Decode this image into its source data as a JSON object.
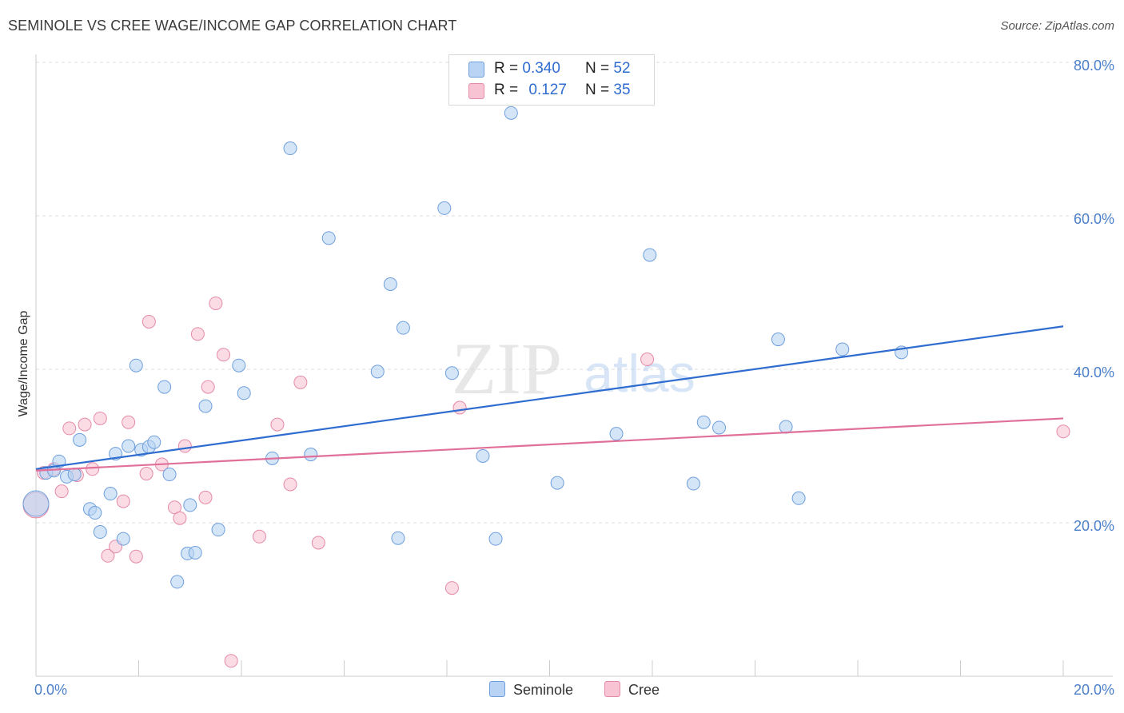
{
  "title": "SEMINOLE VS CREE WAGE/INCOME GAP CORRELATION CHART",
  "source": "Source: ZipAtlas.com",
  "watermark": {
    "zip": "ZIP",
    "atlas": "atlas"
  },
  "legend": {
    "rows": [
      {
        "r_label": "R =",
        "r_value": "0.340",
        "n_label": "N =",
        "n_value": "52"
      },
      {
        "r_label": "R =",
        "r_value": "0.127",
        "n_label": "N =",
        "n_value": "35"
      }
    ]
  },
  "bottom_legend": {
    "seminole": "Seminole",
    "cree": "Cree"
  },
  "colors": {
    "seminole_fill": "#b8d3f3",
    "seminole_stroke": "#6e9fdc",
    "seminole_line": "#2f6ccf",
    "cree_fill": "#f8c4d4",
    "cree_stroke": "#e58aa8",
    "cree_line": "#e0709a",
    "tick_text": "#4a7fc9",
    "grid": "#dddddd"
  },
  "chart_data": {
    "type": "scatter",
    "title": "SEMINOLE VS CREE WAGE/INCOME GAP CORRELATION CHART",
    "xlabel": "",
    "ylabel": "Wage/Income Gap",
    "xlim": [
      0,
      20
    ],
    "ylim": [
      0,
      82
    ],
    "x_tick_labels": [
      "0.0%",
      "20.0%"
    ],
    "y_ticks": [
      20,
      40,
      60,
      80
    ],
    "y_tick_labels": [
      "20.0%",
      "40.0%",
      "60.0%",
      "80.0%"
    ],
    "grid": true,
    "legend_position": "top-center",
    "series": [
      {
        "name": "Seminole",
        "r": 0.34,
        "n": 52,
        "trend": {
          "x": [
            0,
            20
          ],
          "y": [
            27.0,
            45.6
          ]
        },
        "points": [
          [
            0.0,
            22.5
          ],
          [
            0.2,
            26.5
          ],
          [
            0.35,
            26.8
          ],
          [
            0.45,
            28.0
          ],
          [
            0.6,
            26.0
          ],
          [
            0.75,
            26.3
          ],
          [
            0.85,
            30.8
          ],
          [
            1.05,
            21.8
          ],
          [
            1.15,
            21.3
          ],
          [
            1.25,
            18.8
          ],
          [
            1.45,
            23.8
          ],
          [
            1.55,
            29.0
          ],
          [
            1.7,
            17.9
          ],
          [
            1.8,
            30.0
          ],
          [
            1.95,
            40.5
          ],
          [
            2.05,
            29.5
          ],
          [
            2.2,
            29.9
          ],
          [
            2.3,
            30.5
          ],
          [
            2.5,
            37.7
          ],
          [
            2.6,
            26.3
          ],
          [
            2.75,
            12.3
          ],
          [
            2.95,
            16.0
          ],
          [
            3.0,
            22.3
          ],
          [
            3.1,
            16.1
          ],
          [
            3.3,
            35.2
          ],
          [
            3.55,
            19.1
          ],
          [
            3.95,
            40.5
          ],
          [
            4.05,
            36.9
          ],
          [
            4.6,
            28.4
          ],
          [
            4.95,
            68.8
          ],
          [
            5.35,
            28.9
          ],
          [
            5.7,
            57.1
          ],
          [
            6.65,
            39.7
          ],
          [
            6.9,
            51.1
          ],
          [
            7.05,
            18.0
          ],
          [
            7.15,
            45.4
          ],
          [
            7.95,
            61.0
          ],
          [
            8.1,
            39.5
          ],
          [
            8.7,
            28.7
          ],
          [
            8.95,
            17.9
          ],
          [
            9.25,
            73.4
          ],
          [
            10.15,
            25.2
          ],
          [
            11.3,
            31.6
          ],
          [
            11.95,
            54.9
          ],
          [
            12.8,
            25.1
          ],
          [
            13.0,
            33.1
          ],
          [
            13.3,
            32.4
          ],
          [
            14.45,
            43.9
          ],
          [
            14.6,
            32.5
          ],
          [
            14.85,
            23.2
          ],
          [
            15.7,
            42.6
          ],
          [
            16.85,
            42.2
          ]
        ]
      },
      {
        "name": "Cree",
        "r": 0.127,
        "n": 35,
        "trend": {
          "x": [
            0,
            20
          ],
          "y": [
            26.8,
            33.6
          ]
        },
        "points": [
          [
            0.0,
            22.3
          ],
          [
            0.15,
            26.5
          ],
          [
            0.35,
            27.0
          ],
          [
            0.5,
            24.1
          ],
          [
            0.65,
            32.3
          ],
          [
            0.8,
            26.2
          ],
          [
            0.95,
            32.8
          ],
          [
            1.1,
            27.0
          ],
          [
            1.25,
            33.6
          ],
          [
            1.4,
            15.7
          ],
          [
            1.55,
            16.9
          ],
          [
            1.7,
            22.8
          ],
          [
            1.8,
            33.1
          ],
          [
            1.95,
            15.6
          ],
          [
            2.15,
            26.4
          ],
          [
            2.2,
            46.2
          ],
          [
            2.45,
            27.6
          ],
          [
            2.7,
            22.0
          ],
          [
            2.8,
            20.6
          ],
          [
            2.9,
            30.0
          ],
          [
            3.15,
            44.6
          ],
          [
            3.3,
            23.3
          ],
          [
            3.35,
            37.7
          ],
          [
            3.5,
            48.6
          ],
          [
            3.65,
            41.9
          ],
          [
            3.8,
            2.0
          ],
          [
            4.35,
            18.2
          ],
          [
            4.7,
            32.8
          ],
          [
            4.95,
            25.0
          ],
          [
            5.15,
            38.3
          ],
          [
            5.5,
            17.4
          ],
          [
            8.1,
            11.5
          ],
          [
            8.25,
            35.0
          ],
          [
            11.9,
            41.3
          ],
          [
            20.0,
            31.9
          ]
        ]
      }
    ]
  }
}
